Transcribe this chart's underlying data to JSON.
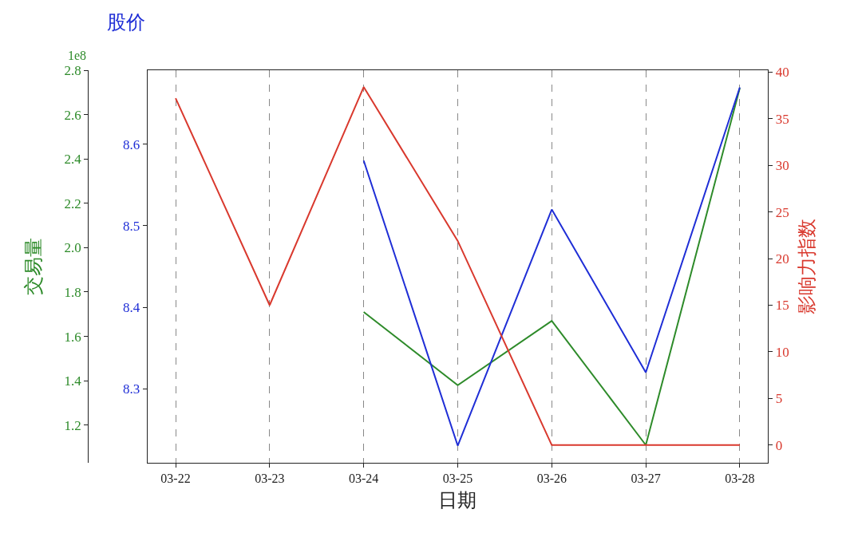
{
  "chart_data": {
    "type": "line",
    "xlabel": "日期",
    "ylabel": "交易量",
    "y2label": "股价",
    "y3label": "影响力指数",
    "categories": [
      "03-22",
      "03-23",
      "03-24",
      "03-25",
      "03-26",
      "03-27",
      "03-28"
    ],
    "series": [
      {
        "color": "#2e8b2a",
        "axis": "y",
        "values": [
          null,
          null,
          1.71,
          1.38,
          1.67,
          1.11,
          2.72
        ]
      },
      {
        "color": "#1f2ed6",
        "axis": "y2",
        "values": [
          null,
          null,
          8.58,
          8.23,
          8.52,
          8.32,
          8.67
        ]
      },
      {
        "color": "#d9392e",
        "axis": "y3",
        "values": [
          37.2,
          15.0,
          38.4,
          21.9,
          0,
          0,
          0
        ]
      }
    ],
    "ylim": [
      1.03,
      2.8
    ],
    "yticks": [
      {
        "value": 1.2,
        "label": "1.2"
      },
      {
        "value": 1.4,
        "label": "1.4"
      },
      {
        "value": 1.6,
        "label": "1.6"
      },
      {
        "value": 1.8,
        "label": "1.8"
      },
      {
        "value": 2.0,
        "label": "2.0"
      },
      {
        "value": 2.2,
        "label": "2.2"
      },
      {
        "value": 2.4,
        "label": "2.4"
      },
      {
        "value": 2.6,
        "label": "2.6"
      },
      {
        "value": 2.8,
        "label": "2.8"
      }
    ],
    "y2lim": [
      8.209,
      8.691
    ],
    "y2ticks": [
      8.3,
      8.4,
      8.5,
      8.6
    ],
    "y3lim": [
      -1.9,
      40.2
    ],
    "y3ticks": [
      0,
      5,
      10,
      15,
      20,
      25,
      30,
      35,
      40
    ],
    "grid": "x",
    "line_style": "solid",
    "marker": "none",
    "annotations": [
      "1e8"
    ]
  }
}
